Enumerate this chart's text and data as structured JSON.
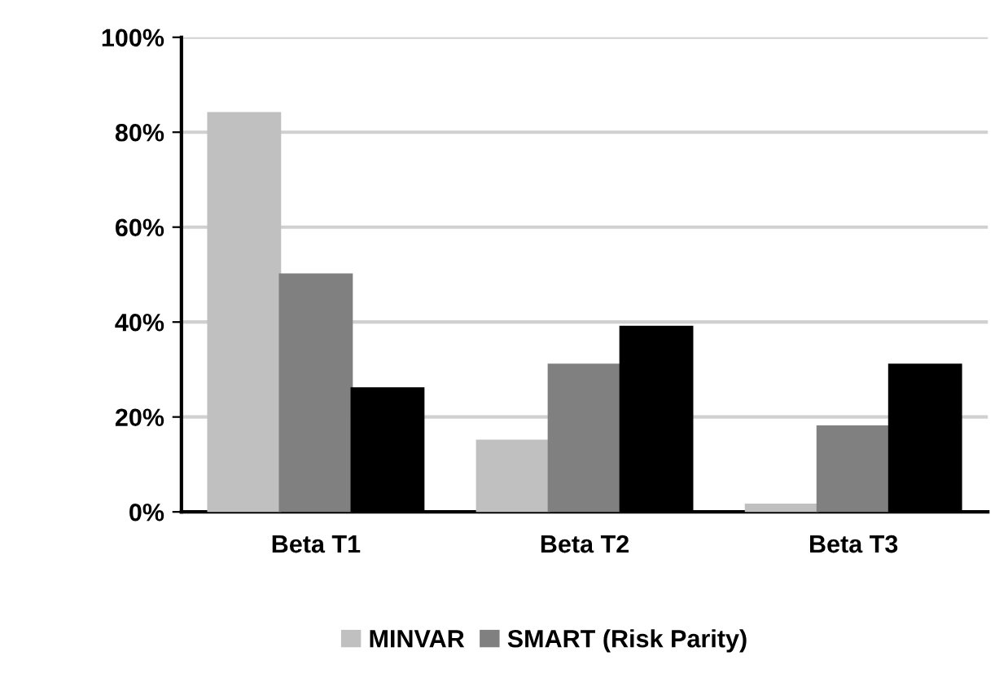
{
  "chart_data": {
    "type": "bar",
    "categories": [
      "Beta T1",
      "Beta T2",
      "Beta T3"
    ],
    "series": [
      {
        "name": "MINVAR",
        "color": "#c0c0c0",
        "values": [
          84,
          15,
          1.5
        ]
      },
      {
        "name": "SMART (Risk Parity)",
        "color": "#808080",
        "values": [
          50,
          31,
          18
        ]
      },
      {
        "color": "#000000",
        "values": [
          26,
          39,
          31
        ]
      }
    ],
    "ylim": [
      0,
      100
    ],
    "yticks": [
      {
        "value": 0,
        "label": "0%"
      },
      {
        "value": 20,
        "label": "20%"
      },
      {
        "value": 40,
        "label": "40%"
      },
      {
        "value": 60,
        "label": "60%"
      },
      {
        "value": 80,
        "label": "80%"
      },
      {
        "value": 100,
        "label": "100%"
      }
    ],
    "grid": "y",
    "legend": "bottom"
  }
}
